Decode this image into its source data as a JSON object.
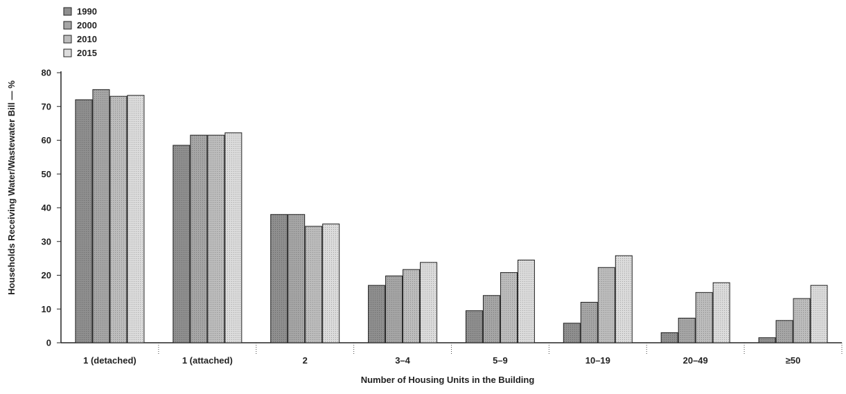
{
  "chart_data": {
    "type": "bar",
    "title": "",
    "xlabel": "Number of Housing Units in the Building",
    "ylabel": "Households Receiving Water/Wastewater Bill — %",
    "ylim": [
      0,
      80
    ],
    "yticks": [
      0,
      10,
      20,
      30,
      40,
      50,
      60,
      70,
      80
    ],
    "grid": false,
    "legend_position": "top-left",
    "categories": [
      "1 (detached)",
      "1 (attached)",
      "2",
      "3–4",
      "5–9",
      "10–19",
      "20–49",
      "≥50"
    ],
    "series": [
      {
        "name": "1990",
        "color": "#8f8f8f",
        "values": [
          72,
          58.5,
          38,
          17,
          9.5,
          5.8,
          3,
          1.5
        ]
      },
      {
        "name": "2000",
        "color": "#a6a6a6",
        "values": [
          75,
          61.5,
          38,
          19.8,
          14,
          12,
          7.3,
          6.6
        ]
      },
      {
        "name": "2010",
        "color": "#bdbdbd",
        "values": [
          73,
          61.5,
          34.5,
          21.7,
          20.8,
          22.3,
          14.9,
          13.1
        ]
      },
      {
        "name": "2015",
        "color": "#dcdcdc",
        "values": [
          73.3,
          62.2,
          35.2,
          23.8,
          24.5,
          25.8,
          17.8,
          17
        ]
      }
    ]
  }
}
